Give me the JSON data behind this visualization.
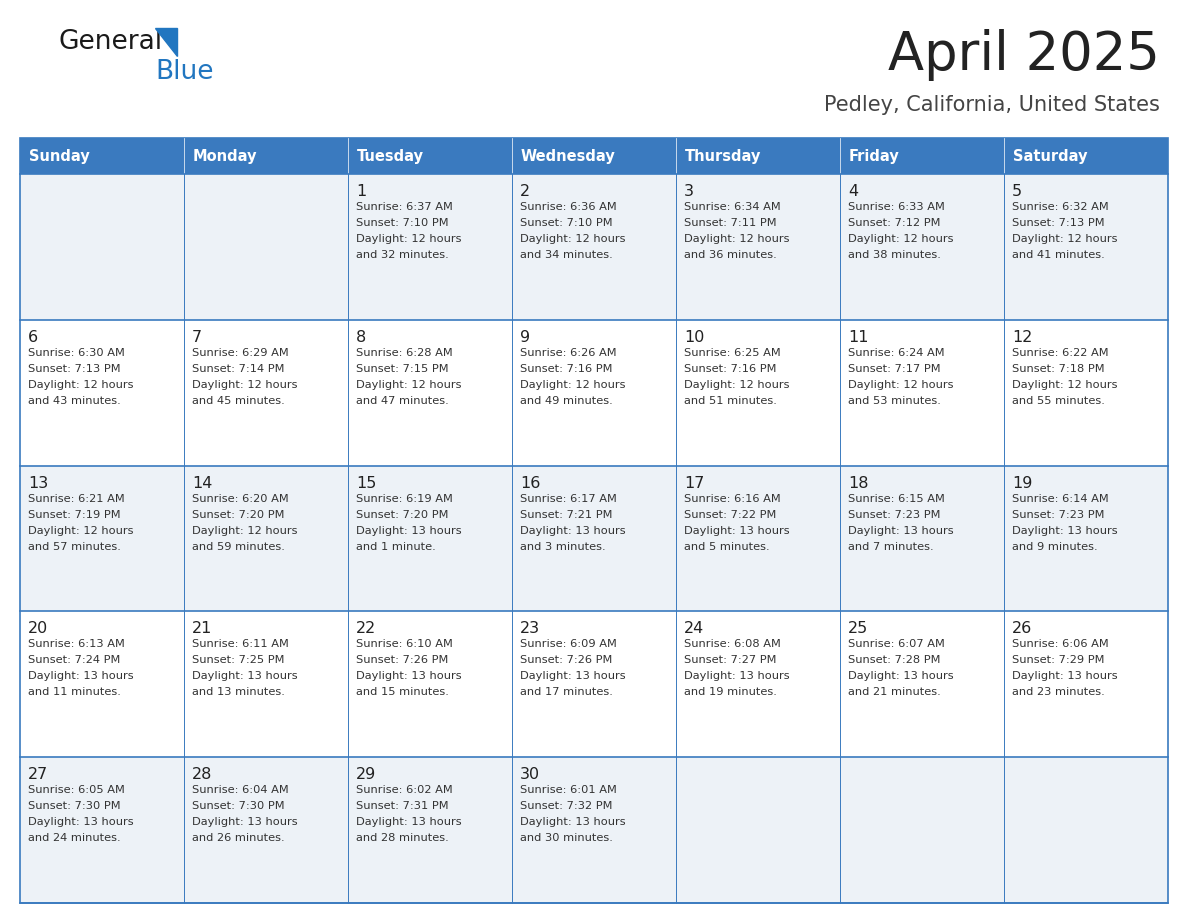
{
  "title": "April 2025",
  "subtitle": "Pedley, California, United States",
  "days_of_week": [
    "Sunday",
    "Monday",
    "Tuesday",
    "Wednesday",
    "Thursday",
    "Friday",
    "Saturday"
  ],
  "header_bg": "#3a7abf",
  "header_text": "#ffffff",
  "row_bg_even": "#edf2f7",
  "row_bg_odd": "#ffffff",
  "cell_border": "#3a7abf",
  "day_number_color": "#222222",
  "text_color": "#333333",
  "title_color": "#222222",
  "subtitle_color": "#444444",
  "logo_general_color": "#1a1a1a",
  "logo_blue_color": "#2176c0",
  "weeks": [
    [
      {
        "day": "",
        "sunrise": "",
        "sunset": "",
        "daylight": ""
      },
      {
        "day": "",
        "sunrise": "",
        "sunset": "",
        "daylight": ""
      },
      {
        "day": "1",
        "sunrise": "Sunrise: 6:37 AM",
        "sunset": "Sunset: 7:10 PM",
        "daylight": "Daylight: 12 hours\nand 32 minutes."
      },
      {
        "day": "2",
        "sunrise": "Sunrise: 6:36 AM",
        "sunset": "Sunset: 7:10 PM",
        "daylight": "Daylight: 12 hours\nand 34 minutes."
      },
      {
        "day": "3",
        "sunrise": "Sunrise: 6:34 AM",
        "sunset": "Sunset: 7:11 PM",
        "daylight": "Daylight: 12 hours\nand 36 minutes."
      },
      {
        "day": "4",
        "sunrise": "Sunrise: 6:33 AM",
        "sunset": "Sunset: 7:12 PM",
        "daylight": "Daylight: 12 hours\nand 38 minutes."
      },
      {
        "day": "5",
        "sunrise": "Sunrise: 6:32 AM",
        "sunset": "Sunset: 7:13 PM",
        "daylight": "Daylight: 12 hours\nand 41 minutes."
      }
    ],
    [
      {
        "day": "6",
        "sunrise": "Sunrise: 6:30 AM",
        "sunset": "Sunset: 7:13 PM",
        "daylight": "Daylight: 12 hours\nand 43 minutes."
      },
      {
        "day": "7",
        "sunrise": "Sunrise: 6:29 AM",
        "sunset": "Sunset: 7:14 PM",
        "daylight": "Daylight: 12 hours\nand 45 minutes."
      },
      {
        "day": "8",
        "sunrise": "Sunrise: 6:28 AM",
        "sunset": "Sunset: 7:15 PM",
        "daylight": "Daylight: 12 hours\nand 47 minutes."
      },
      {
        "day": "9",
        "sunrise": "Sunrise: 6:26 AM",
        "sunset": "Sunset: 7:16 PM",
        "daylight": "Daylight: 12 hours\nand 49 minutes."
      },
      {
        "day": "10",
        "sunrise": "Sunrise: 6:25 AM",
        "sunset": "Sunset: 7:16 PM",
        "daylight": "Daylight: 12 hours\nand 51 minutes."
      },
      {
        "day": "11",
        "sunrise": "Sunrise: 6:24 AM",
        "sunset": "Sunset: 7:17 PM",
        "daylight": "Daylight: 12 hours\nand 53 minutes."
      },
      {
        "day": "12",
        "sunrise": "Sunrise: 6:22 AM",
        "sunset": "Sunset: 7:18 PM",
        "daylight": "Daylight: 12 hours\nand 55 minutes."
      }
    ],
    [
      {
        "day": "13",
        "sunrise": "Sunrise: 6:21 AM",
        "sunset": "Sunset: 7:19 PM",
        "daylight": "Daylight: 12 hours\nand 57 minutes."
      },
      {
        "day": "14",
        "sunrise": "Sunrise: 6:20 AM",
        "sunset": "Sunset: 7:20 PM",
        "daylight": "Daylight: 12 hours\nand 59 minutes."
      },
      {
        "day": "15",
        "sunrise": "Sunrise: 6:19 AM",
        "sunset": "Sunset: 7:20 PM",
        "daylight": "Daylight: 13 hours\nand 1 minute."
      },
      {
        "day": "16",
        "sunrise": "Sunrise: 6:17 AM",
        "sunset": "Sunset: 7:21 PM",
        "daylight": "Daylight: 13 hours\nand 3 minutes."
      },
      {
        "day": "17",
        "sunrise": "Sunrise: 6:16 AM",
        "sunset": "Sunset: 7:22 PM",
        "daylight": "Daylight: 13 hours\nand 5 minutes."
      },
      {
        "day": "18",
        "sunrise": "Sunrise: 6:15 AM",
        "sunset": "Sunset: 7:23 PM",
        "daylight": "Daylight: 13 hours\nand 7 minutes."
      },
      {
        "day": "19",
        "sunrise": "Sunrise: 6:14 AM",
        "sunset": "Sunset: 7:23 PM",
        "daylight": "Daylight: 13 hours\nand 9 minutes."
      }
    ],
    [
      {
        "day": "20",
        "sunrise": "Sunrise: 6:13 AM",
        "sunset": "Sunset: 7:24 PM",
        "daylight": "Daylight: 13 hours\nand 11 minutes."
      },
      {
        "day": "21",
        "sunrise": "Sunrise: 6:11 AM",
        "sunset": "Sunset: 7:25 PM",
        "daylight": "Daylight: 13 hours\nand 13 minutes."
      },
      {
        "day": "22",
        "sunrise": "Sunrise: 6:10 AM",
        "sunset": "Sunset: 7:26 PM",
        "daylight": "Daylight: 13 hours\nand 15 minutes."
      },
      {
        "day": "23",
        "sunrise": "Sunrise: 6:09 AM",
        "sunset": "Sunset: 7:26 PM",
        "daylight": "Daylight: 13 hours\nand 17 minutes."
      },
      {
        "day": "24",
        "sunrise": "Sunrise: 6:08 AM",
        "sunset": "Sunset: 7:27 PM",
        "daylight": "Daylight: 13 hours\nand 19 minutes."
      },
      {
        "day": "25",
        "sunrise": "Sunrise: 6:07 AM",
        "sunset": "Sunset: 7:28 PM",
        "daylight": "Daylight: 13 hours\nand 21 minutes."
      },
      {
        "day": "26",
        "sunrise": "Sunrise: 6:06 AM",
        "sunset": "Sunset: 7:29 PM",
        "daylight": "Daylight: 13 hours\nand 23 minutes."
      }
    ],
    [
      {
        "day": "27",
        "sunrise": "Sunrise: 6:05 AM",
        "sunset": "Sunset: 7:30 PM",
        "daylight": "Daylight: 13 hours\nand 24 minutes."
      },
      {
        "day": "28",
        "sunrise": "Sunrise: 6:04 AM",
        "sunset": "Sunset: 7:30 PM",
        "daylight": "Daylight: 13 hours\nand 26 minutes."
      },
      {
        "day": "29",
        "sunrise": "Sunrise: 6:02 AM",
        "sunset": "Sunset: 7:31 PM",
        "daylight": "Daylight: 13 hours\nand 28 minutes."
      },
      {
        "day": "30",
        "sunrise": "Sunrise: 6:01 AM",
        "sunset": "Sunset: 7:32 PM",
        "daylight": "Daylight: 13 hours\nand 30 minutes."
      },
      {
        "day": "",
        "sunrise": "",
        "sunset": "",
        "daylight": ""
      },
      {
        "day": "",
        "sunrise": "",
        "sunset": "",
        "daylight": ""
      },
      {
        "day": "",
        "sunrise": "",
        "sunset": "",
        "daylight": ""
      }
    ]
  ]
}
